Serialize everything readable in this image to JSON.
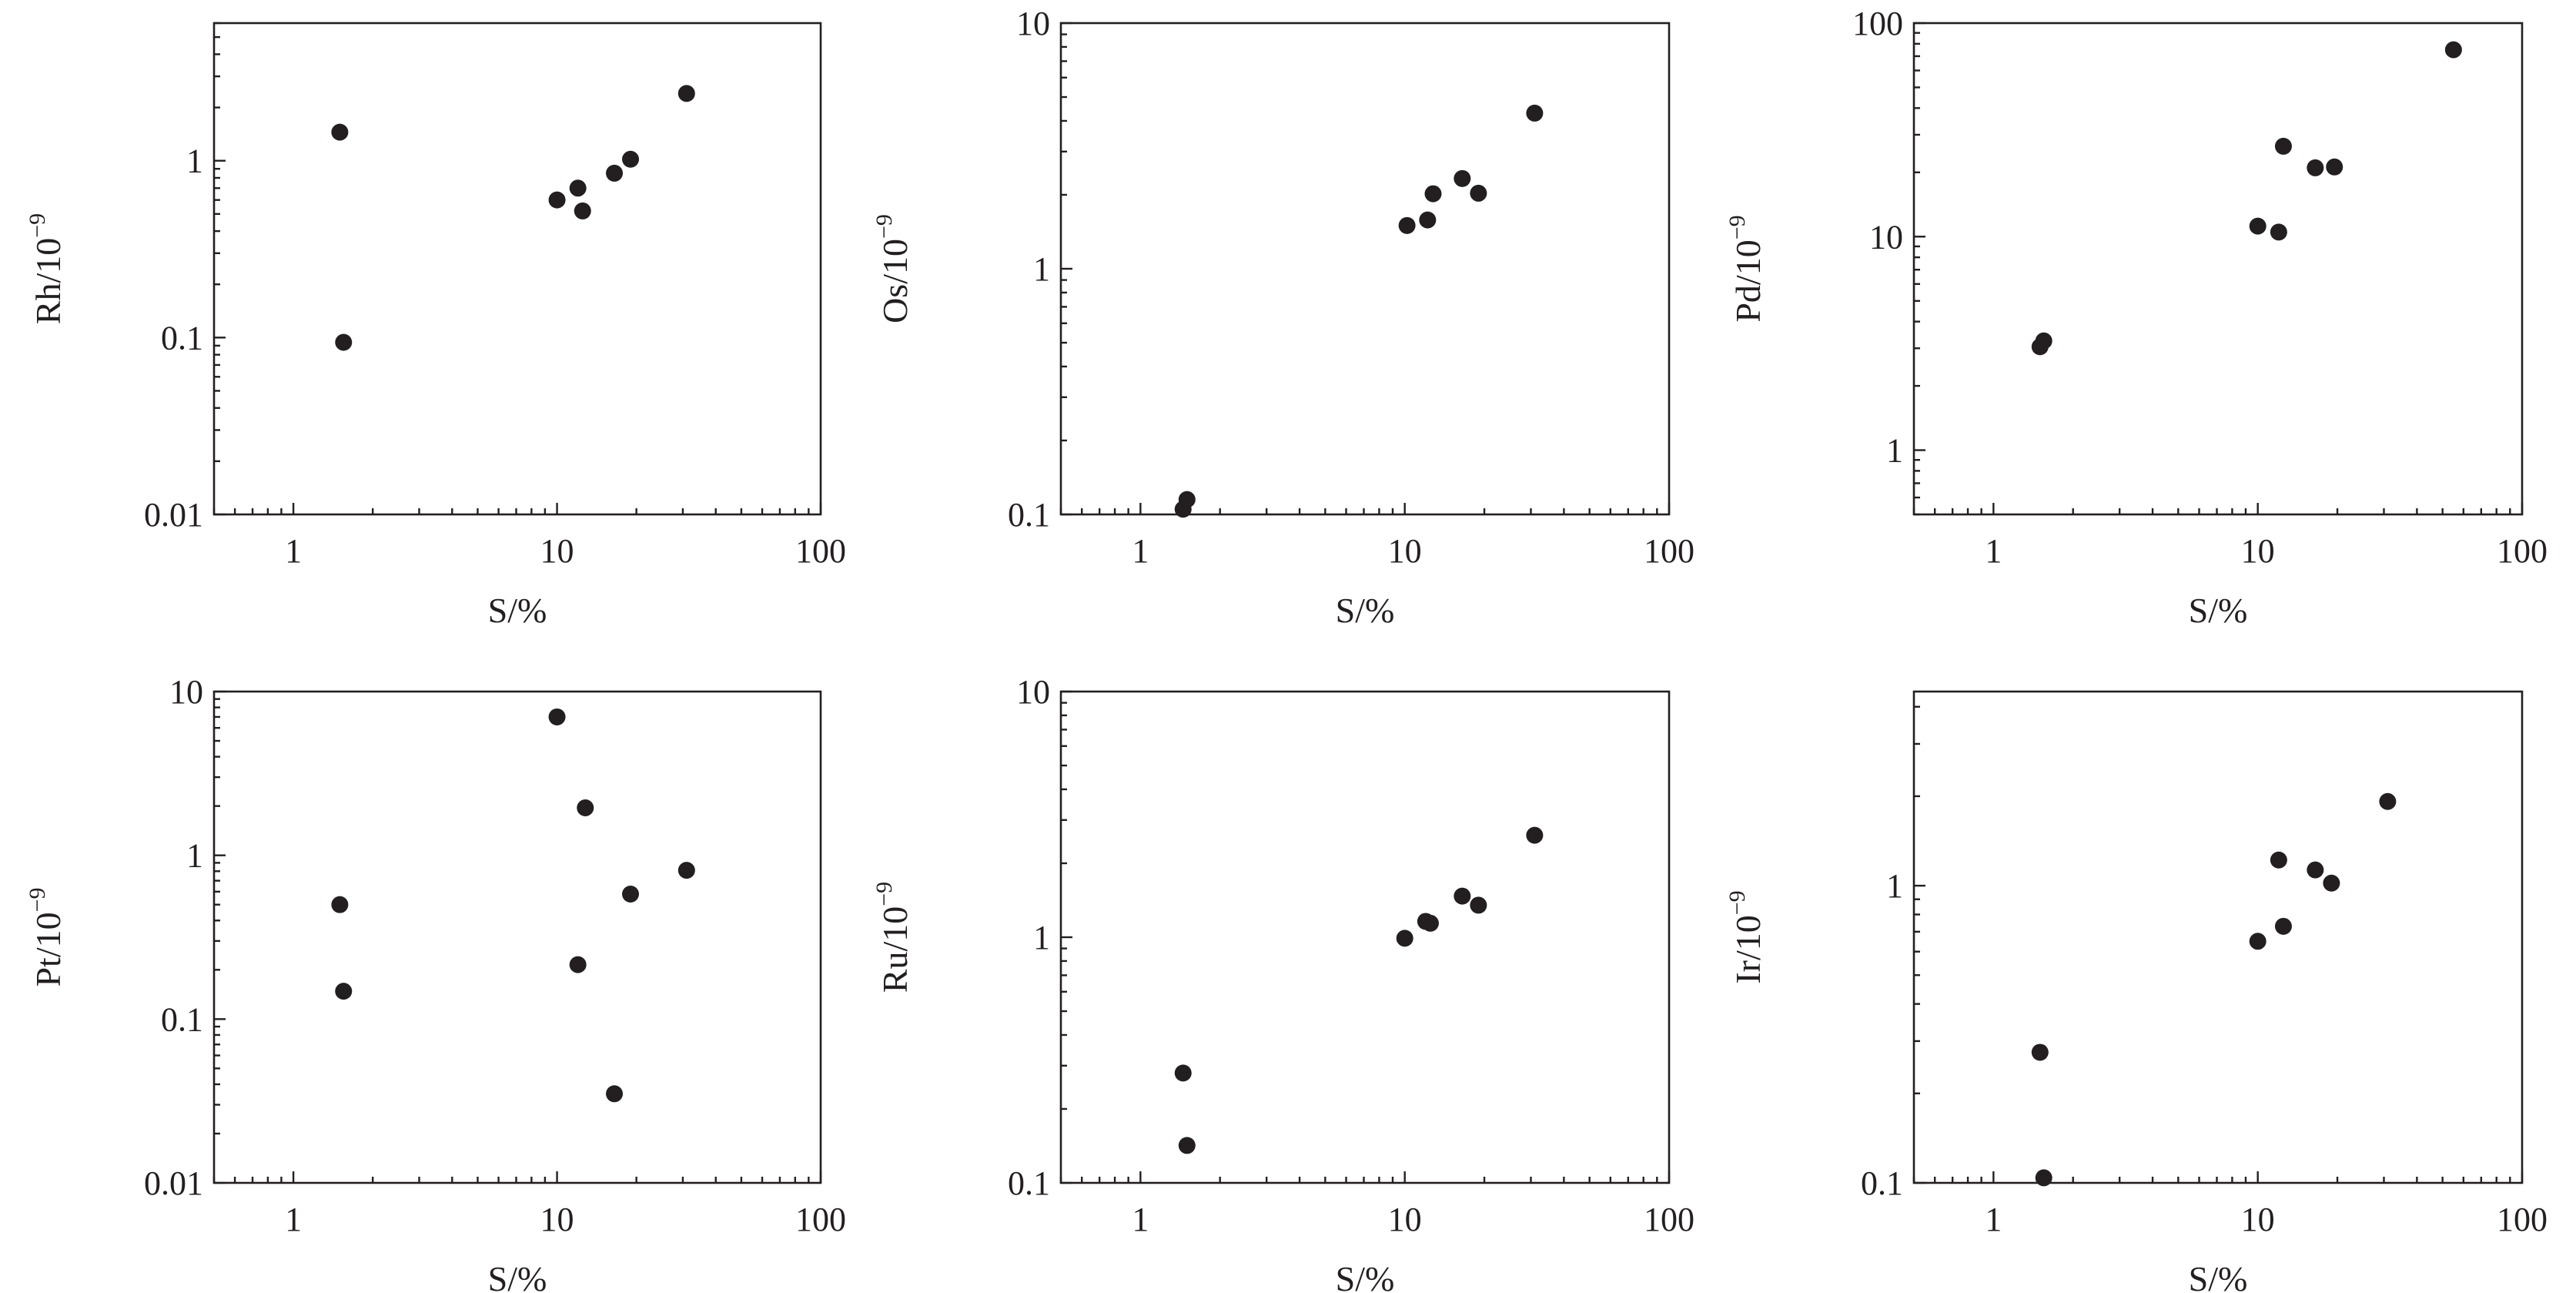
{
  "chart_data": [
    {
      "type": "scatter",
      "xlabel": "S/%",
      "ylabel": "Rh/10",
      "xscale": "log",
      "yscale": "log",
      "xlim": [
        0.5,
        100
      ],
      "ylim": [
        0.01,
        6
      ],
      "xticks": [
        "1",
        "10",
        "100"
      ],
      "yticks": [
        "0.01",
        "0.1",
        "1"
      ],
      "x": [
        1.5,
        1.55,
        10,
        12,
        12.5,
        16.5,
        19,
        31
      ],
      "y": [
        1.45,
        0.094,
        0.6,
        0.7,
        0.52,
        0.85,
        1.02,
        2.4
      ]
    },
    {
      "type": "scatter",
      "xlabel": "S/%",
      "ylabel": "Os/10",
      "xscale": "log",
      "yscale": "log",
      "xlim": [
        0.5,
        100
      ],
      "ylim": [
        0.1,
        10
      ],
      "xticks": [
        "1",
        "10",
        "100"
      ],
      "yticks": [
        "0.1",
        "1",
        "10"
      ],
      "x": [
        1.45,
        1.5,
        10.2,
        12.2,
        12.8,
        16.5,
        19,
        31
      ],
      "y": [
        0.105,
        0.115,
        1.5,
        1.58,
        2.02,
        2.33,
        2.03,
        4.3
      ]
    },
    {
      "type": "scatter",
      "xlabel": "S/%",
      "ylabel": "Pd/10",
      "xscale": "log",
      "yscale": "log",
      "xlim": [
        0.5,
        100
      ],
      "ylim": [
        0.5,
        100
      ],
      "xticks": [
        "1",
        "10",
        "100"
      ],
      "yticks": [
        "1",
        "10",
        "100"
      ],
      "x": [
        1.5,
        1.55,
        10,
        12,
        12.5,
        16.5,
        19.5,
        55
      ],
      "y": [
        3.05,
        3.25,
        11.2,
        10.5,
        26.5,
        21,
        21.2,
        75
      ]
    },
    {
      "type": "scatter",
      "xlabel": "S/%",
      "ylabel": "Pt/10",
      "xscale": "log",
      "yscale": "log",
      "xlim": [
        0.5,
        100
      ],
      "ylim": [
        0.01,
        10
      ],
      "xticks": [
        "1",
        "10",
        "100"
      ],
      "yticks": [
        "0.01",
        "0.1",
        "1",
        "10"
      ],
      "x": [
        1.5,
        1.55,
        10,
        12,
        12.8,
        16.5,
        19,
        31
      ],
      "y": [
        0.5,
        0.148,
        7,
        0.215,
        1.95,
        0.035,
        0.58,
        0.81
      ]
    },
    {
      "type": "scatter",
      "xlabel": "S/%",
      "ylabel": "Ru/10",
      "xscale": "log",
      "yscale": "log",
      "xlim": [
        0.5,
        100
      ],
      "ylim": [
        0.1,
        10
      ],
      "xticks": [
        "1",
        "10",
        "100"
      ],
      "yticks": [
        "0.1",
        "1",
        "10"
      ],
      "x": [
        1.45,
        1.5,
        10,
        12,
        12.5,
        16.5,
        19,
        31
      ],
      "y": [
        0.28,
        0.142,
        0.99,
        1.16,
        1.14,
        1.47,
        1.35,
        2.6
      ]
    },
    {
      "type": "scatter",
      "xlabel": "S/%",
      "ylabel": "Ir/10",
      "xscale": "log",
      "yscale": "log",
      "xlim": [
        0.5,
        100
      ],
      "ylim": [
        0.1,
        4.5
      ],
      "xticks": [
        "1",
        "10",
        "100"
      ],
      "yticks": [
        "0.1",
        "1"
      ],
      "x": [
        1.5,
        1.55,
        10,
        12,
        12.5,
        16.5,
        19,
        31
      ],
      "y": [
        0.275,
        0.104,
        0.65,
        1.22,
        0.73,
        1.13,
        1.02,
        1.92
      ]
    }
  ]
}
